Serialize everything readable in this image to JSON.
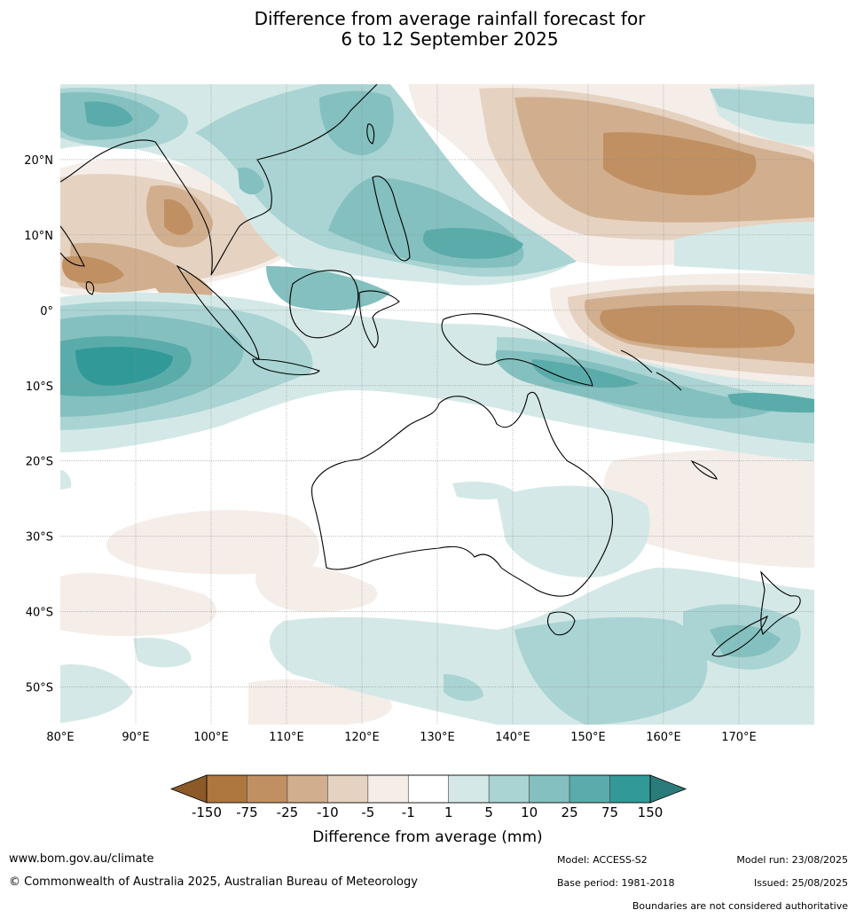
{
  "title": {
    "line1": "Difference from average rainfall forecast for",
    "line2": "6 to 12 September 2025"
  },
  "map": {
    "projection": "equirectangular",
    "lon_range": [
      80,
      180
    ],
    "lat_range": [
      -55,
      30
    ],
    "lon_ticks": [
      {
        "value": 80,
        "label": "80°E"
      },
      {
        "value": 90,
        "label": "90°E"
      },
      {
        "value": 100,
        "label": "100°E"
      },
      {
        "value": 110,
        "label": "110°E"
      },
      {
        "value": 120,
        "label": "120°E"
      },
      {
        "value": 130,
        "label": "130°E"
      },
      {
        "value": 140,
        "label": "140°E"
      },
      {
        "value": 150,
        "label": "150°E"
      },
      {
        "value": 160,
        "label": "160°E"
      },
      {
        "value": 170,
        "label": "170°E"
      }
    ],
    "lat_ticks": [
      {
        "value": 20,
        "label": "20°N"
      },
      {
        "value": 10,
        "label": "10°N"
      },
      {
        "value": 0,
        "label": "0°"
      },
      {
        "value": -10,
        "label": "10°S"
      },
      {
        "value": -20,
        "label": "20°S"
      },
      {
        "value": -30,
        "label": "30°S"
      },
      {
        "value": -40,
        "label": "40°S"
      },
      {
        "value": -50,
        "label": "50°S"
      }
    ],
    "grid": true
  },
  "colorbar": {
    "title": "Difference from average (mm)",
    "tick_labels": [
      "-150",
      "-75",
      "-25",
      "-10",
      "-5",
      "-1",
      "1",
      "5",
      "10",
      "25",
      "75",
      "150"
    ],
    "extend": "both",
    "low_extend_color": "#8c5a28",
    "high_extend_color": "#2a7c7a",
    "colors": [
      "#ad773f",
      "#c09063",
      "#d1af8e",
      "#e5d2c1",
      "#f5ede8",
      "#ffffff",
      "#d4e9e7",
      "#a9d4d3",
      "#84c0bf",
      "#5aacab",
      "#319a98"
    ]
  },
  "footer": {
    "website": "www.bom.gov.au/climate",
    "copyright": "© Commonwealth of Australia 2025, Australian Bureau of Meteorology",
    "model": "Model: ACCESS-S2",
    "base_period": "Base period: 1981-2018",
    "model_run": "Model run: 23/08/2025",
    "issued": "Issued: 25/08/2025",
    "disclaimer": "Boundaries are not considered authoritative"
  }
}
